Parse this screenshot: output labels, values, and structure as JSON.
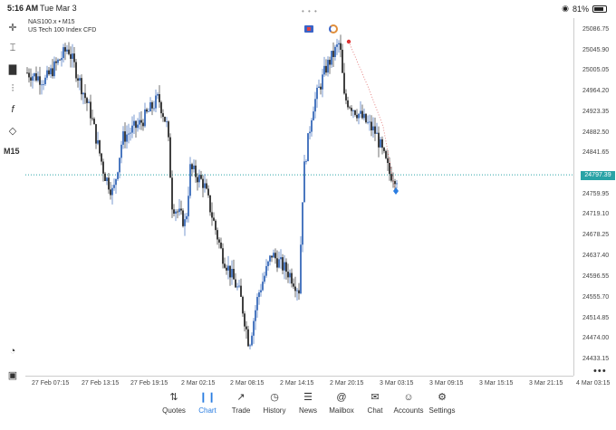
{
  "status": {
    "time": "5:16 AM",
    "date": "Tue Mar 3",
    "battery": "81%"
  },
  "symbol": {
    "title": "NAS100.x • M15",
    "description": "US Tech 100 Index CFD"
  },
  "toolbar": {
    "timeframe": "M15"
  },
  "price_axis": {
    "labels": [
      "25086.75",
      "25045.90",
      "25005.05",
      "24964.20",
      "24923.35",
      "24882.50",
      "24841.65",
      "24759.95",
      "24719.10",
      "24678.25",
      "24637.40",
      "24596.55",
      "24555.70",
      "24514.85",
      "24474.00",
      "24433.15"
    ],
    "current": "24797.39"
  },
  "time_axis": [
    "27 Feb 07:15",
    "27 Feb 13:15",
    "27 Feb 19:15",
    "2 Mar 02:15",
    "2 Mar 08:15",
    "2 Mar 14:15",
    "2 Mar 20:15",
    "3 Mar 03:15",
    "3 Mar 09:15",
    "3 Mar 15:15",
    "3 Mar 21:15",
    "4 Mar 03:15"
  ],
  "tabs": [
    {
      "label": "Quotes",
      "icon": "quotes-icon"
    },
    {
      "label": "Chart",
      "icon": "chart-icon"
    },
    {
      "label": "Trade",
      "icon": "trade-icon"
    },
    {
      "label": "History",
      "icon": "history-icon"
    },
    {
      "label": "News",
      "icon": "news-icon"
    },
    {
      "label": "Mailbox",
      "icon": "mailbox-icon"
    },
    {
      "label": "Chat",
      "icon": "chat-icon"
    },
    {
      "label": "Accounts",
      "icon": "accounts-icon"
    },
    {
      "label": "Settings",
      "icon": "settings-icon"
    }
  ],
  "colors": {
    "accent": "#2a7de1",
    "bull": "#1f56b0",
    "bear": "#111111",
    "price_line": "#2aa3a6"
  },
  "chart_data": {
    "type": "candlestick",
    "ylim": [
      24433.15,
      25086.75
    ],
    "x": [
      "27 Feb 07:15",
      "27 Feb 13:15",
      "27 Feb 19:15",
      "2 Mar 02:15",
      "2 Mar 08:15",
      "2 Mar 14:15",
      "2 Mar 20:15",
      "3 Mar 03:15"
    ],
    "close": [
      25005,
      24900,
      24950,
      24760,
      24530,
      24570,
      24990,
      24797.39
    ],
    "last_price": 24797.39
  }
}
